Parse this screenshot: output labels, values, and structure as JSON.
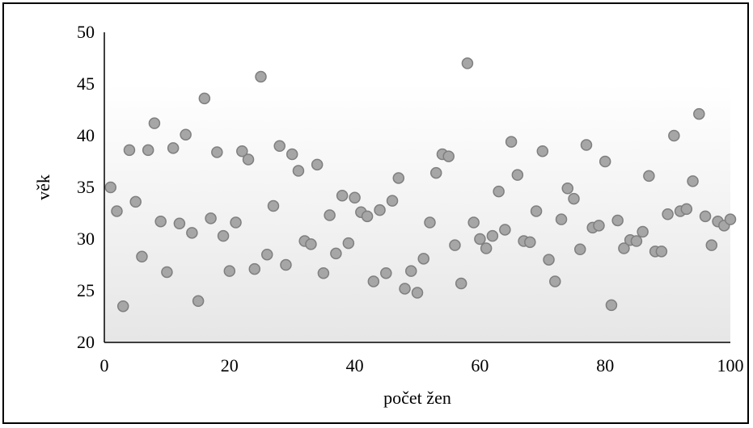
{
  "chart_data": {
    "type": "scatter",
    "title": "",
    "xlabel": "počet žen",
    "ylabel": "věk",
    "xlim": [
      0,
      100
    ],
    "ylim": [
      20,
      50
    ],
    "x_ticks": [
      0,
      20,
      40,
      60,
      80,
      100
    ],
    "y_ticks": [
      20,
      25,
      30,
      35,
      40,
      45,
      50
    ],
    "grid": false,
    "legend": "none",
    "marker_color": "#a6a6a6",
    "marker_edge_color": "#7f7f7f",
    "background_gradient": [
      "#ffffff",
      "#e6e6e6"
    ],
    "points": [
      [
        1,
        35.0
      ],
      [
        2,
        32.7
      ],
      [
        3,
        23.5
      ],
      [
        4,
        38.6
      ],
      [
        5,
        33.6
      ],
      [
        6,
        28.3
      ],
      [
        7,
        38.6
      ],
      [
        8,
        41.2
      ],
      [
        9,
        31.7
      ],
      [
        10,
        26.8
      ],
      [
        11,
        38.8
      ],
      [
        12,
        31.5
      ],
      [
        13,
        40.1
      ],
      [
        14,
        30.6
      ],
      [
        15,
        24.0
      ],
      [
        16,
        43.6
      ],
      [
        17,
        32.0
      ],
      [
        18,
        38.4
      ],
      [
        19,
        30.3
      ],
      [
        20,
        26.9
      ],
      [
        21,
        31.6
      ],
      [
        22,
        38.5
      ],
      [
        23,
        37.7
      ],
      [
        24,
        27.1
      ],
      [
        25,
        45.7
      ],
      [
        26,
        28.5
      ],
      [
        27,
        33.2
      ],
      [
        28,
        39.0
      ],
      [
        29,
        27.5
      ],
      [
        30,
        38.2
      ],
      [
        31,
        36.6
      ],
      [
        32,
        29.8
      ],
      [
        33,
        29.5
      ],
      [
        34,
        37.2
      ],
      [
        35,
        26.7
      ],
      [
        36,
        32.3
      ],
      [
        37,
        28.6
      ],
      [
        38,
        34.2
      ],
      [
        39,
        29.6
      ],
      [
        40,
        34.0
      ],
      [
        41,
        32.6
      ],
      [
        42,
        32.2
      ],
      [
        43,
        25.9
      ],
      [
        44,
        32.8
      ],
      [
        45,
        26.7
      ],
      [
        46,
        33.7
      ],
      [
        47,
        35.9
      ],
      [
        48,
        25.2
      ],
      [
        49,
        26.9
      ],
      [
        50,
        24.8
      ],
      [
        51,
        28.1
      ],
      [
        52,
        31.6
      ],
      [
        53,
        36.4
      ],
      [
        54,
        38.2
      ],
      [
        55,
        38.0
      ],
      [
        56,
        29.4
      ],
      [
        57,
        25.7
      ],
      [
        58,
        47.0
      ],
      [
        59,
        31.6
      ],
      [
        60,
        30.0
      ],
      [
        61,
        29.1
      ],
      [
        62,
        30.3
      ],
      [
        63,
        34.6
      ],
      [
        64,
        30.9
      ],
      [
        65,
        39.4
      ],
      [
        66,
        36.2
      ],
      [
        67,
        29.8
      ],
      [
        68,
        29.7
      ],
      [
        69,
        32.7
      ],
      [
        70,
        38.5
      ],
      [
        71,
        28.0
      ],
      [
        72,
        25.9
      ],
      [
        73,
        31.9
      ],
      [
        74,
        34.9
      ],
      [
        75,
        33.9
      ],
      [
        76,
        29.0
      ],
      [
        77,
        39.1
      ],
      [
        78,
        31.1
      ],
      [
        79,
        31.3
      ],
      [
        80,
        37.5
      ],
      [
        81,
        23.6
      ],
      [
        82,
        31.8
      ],
      [
        83,
        29.1
      ],
      [
        84,
        29.9
      ],
      [
        85,
        29.8
      ],
      [
        86,
        30.7
      ],
      [
        87,
        36.1
      ],
      [
        88,
        28.8
      ],
      [
        89,
        28.8
      ],
      [
        90,
        32.4
      ],
      [
        91,
        40.0
      ],
      [
        92,
        32.7
      ],
      [
        93,
        32.9
      ],
      [
        94,
        35.6
      ],
      [
        95,
        42.1
      ],
      [
        96,
        32.2
      ],
      [
        97,
        29.4
      ],
      [
        98,
        31.7
      ],
      [
        99,
        31.3
      ],
      [
        100,
        31.9
      ]
    ]
  }
}
